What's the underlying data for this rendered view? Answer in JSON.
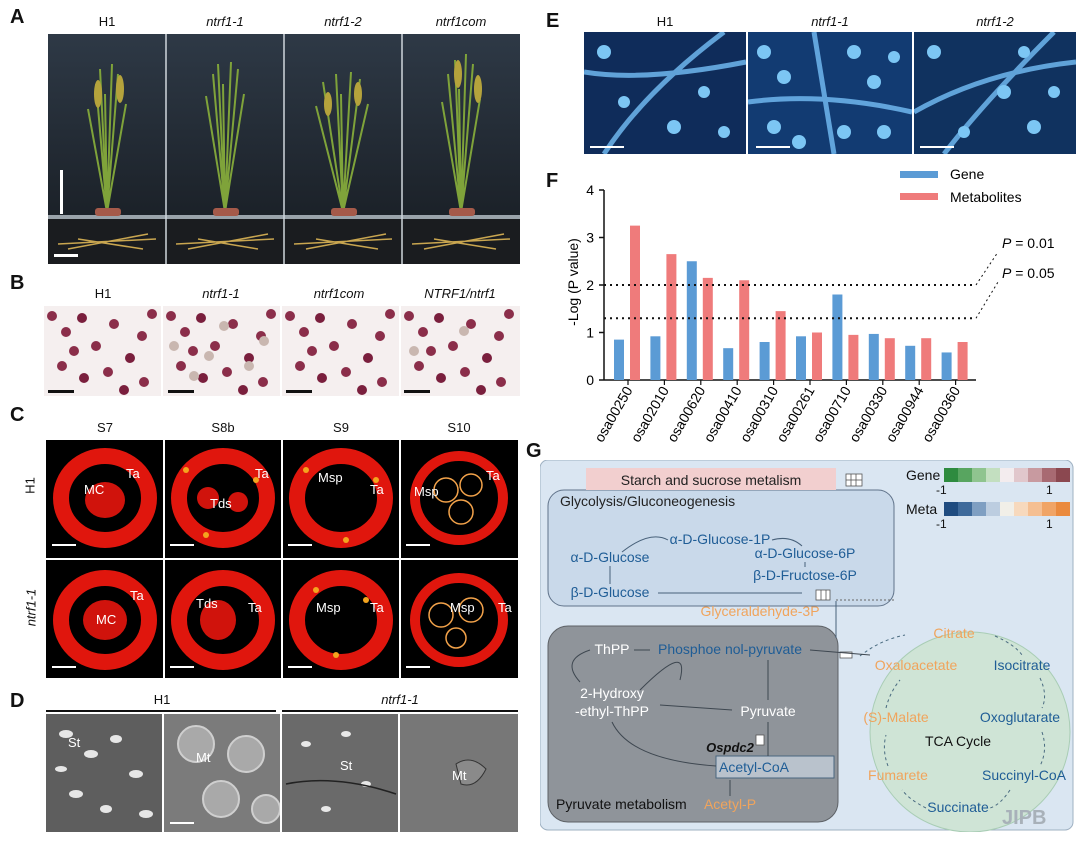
{
  "panels": {
    "A": {
      "label": "A",
      "cols": [
        "H1",
        "ntrf1-1",
        "ntrf1-2",
        "ntrf1com"
      ]
    },
    "B": {
      "label": "B",
      "cols": [
        "H1",
        "ntrf1-1",
        "ntrf1com",
        "NTRF1/ntrf1"
      ]
    },
    "C": {
      "label": "C",
      "cols": [
        "S7",
        "S8b",
        "S9",
        "S10"
      ],
      "rows": [
        "H1",
        "ntrf1-1"
      ],
      "cells": [
        [
          "MC",
          "Ta"
        ],
        [
          "Tds",
          "Ta"
        ],
        [
          "Msp",
          "Ta"
        ],
        [
          "Msp",
          "Ta"
        ],
        [
          "MC",
          "Ta"
        ],
        [
          "Tds",
          "Ta"
        ],
        [
          "Msp",
          "Ta"
        ],
        [
          "Msp",
          "Ta"
        ]
      ]
    },
    "D": {
      "label": "D",
      "groups": [
        "H1",
        "ntrf1-1"
      ],
      "cells": [
        "St",
        "Mt",
        "St",
        "Mt"
      ]
    },
    "E": {
      "label": "E",
      "cols": [
        "H1",
        "ntrf1-1",
        "ntrf1-2"
      ]
    },
    "F": {
      "label": "F"
    },
    "G": {
      "label": "G"
    }
  },
  "chart_data": {
    "type": "bar",
    "categories": [
      "osa00250",
      "osa02010",
      "osa00620",
      "osa00410",
      "osa00310",
      "osa00261",
      "osa00710",
      "osa00330",
      "osa00944",
      "osa00360"
    ],
    "series": [
      {
        "name": "Gene",
        "color": "#5b9bd5",
        "values": [
          0.85,
          0.92,
          2.5,
          0.67,
          0.8,
          0.92,
          1.8,
          0.97,
          0.72,
          0.58
        ]
      },
      {
        "name": "Metabolites",
        "color": "#ef7b7b",
        "values": [
          3.25,
          2.65,
          2.15,
          2.1,
          1.45,
          1.0,
          0.95,
          0.88,
          0.88,
          0.8
        ]
      }
    ],
    "ylabel": "-Log (P value)",
    "ylim": [
      0,
      4
    ],
    "yticks": [
      "0",
      "1",
      "2",
      "3",
      "4"
    ],
    "thresholds": [
      {
        "value": 2,
        "label": "P = 0.01"
      },
      {
        "value": 1.3,
        "label": "P = 0.05"
      }
    ]
  },
  "pathway": {
    "title": "Starch and sucrose metalism",
    "glycolysis": "Glycolysis/Gluconeogenesis",
    "nodes": {
      "g1p": "α-D-Glucose-1P",
      "aglc": "α-D-Glucose",
      "g6p": "α-D-Glucose-6P",
      "f6p": "β-D-Fructose-6P",
      "bglc": "β-D-Glucose",
      "gap": "Glyceraldehyde-3P",
      "thpp": "ThPP",
      "pep": "Phosphoe nol-pyruvate",
      "hyd1": "2-Hydroxy",
      "hyd2": "-ethyl-ThPP",
      "pyr": "Pyruvate",
      "gene": "Ospdc2",
      "acoa": "Acetyl-CoA",
      "pyrmet": "Pyruvate metabolism",
      "acp": "Acetyl-P",
      "tca": "TCA Cycle",
      "cit": "Citrate",
      "oaa": "Oxaloacetate",
      "iso": "Isocitrate",
      "mal": "(S)-Malate",
      "oxo": "Oxoglutarate",
      "fum": "Fumarete",
      "suc": "Succinyl-CoA",
      "succ": "Succinate"
    },
    "legend": {
      "gene": "Gene",
      "meta": "Meta",
      "min": "-1",
      "max": "1"
    },
    "watermark": "JIPB"
  }
}
